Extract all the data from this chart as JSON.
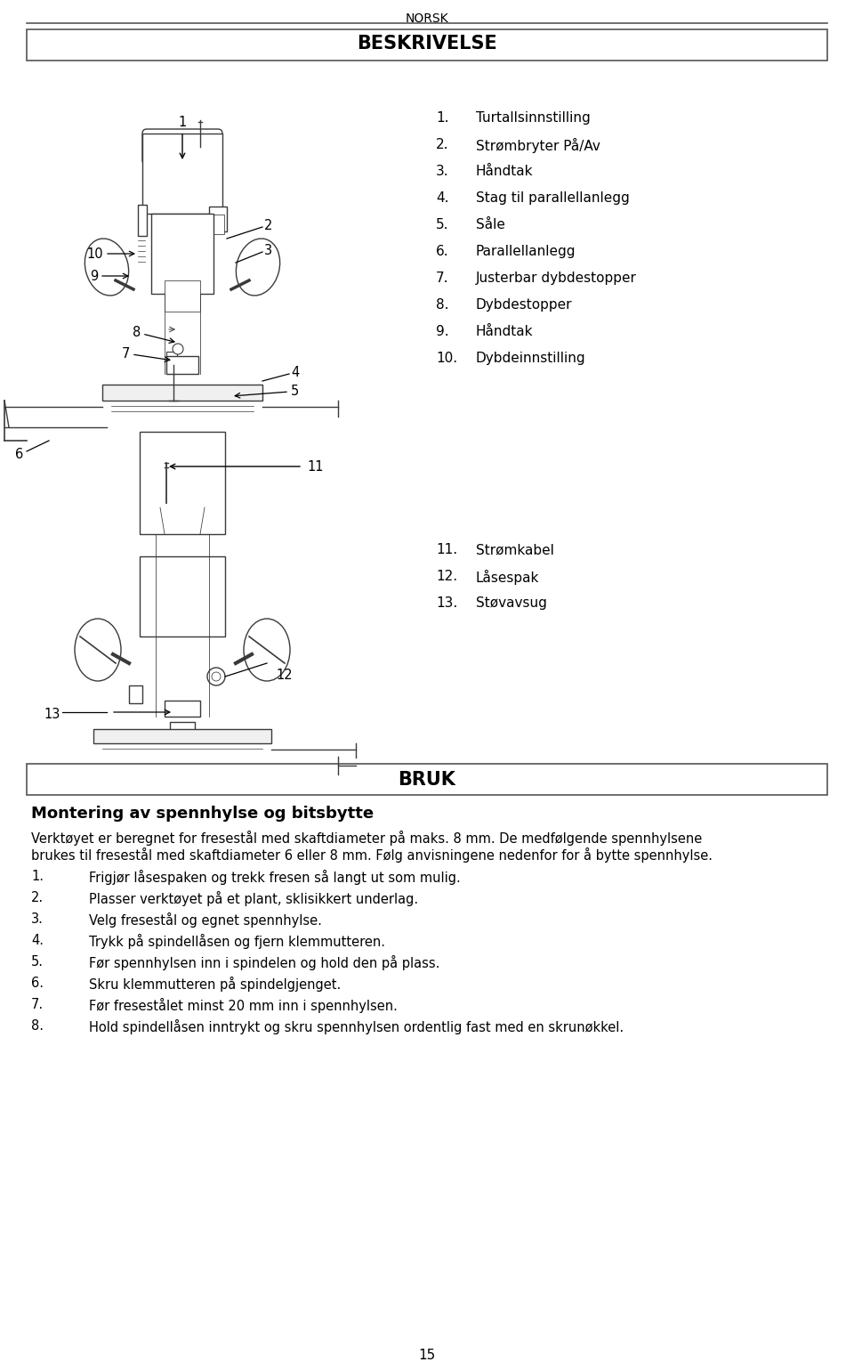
{
  "page_title": "NORSK",
  "section1_title": "BESKRIVELSE",
  "section2_title": "BRUK",
  "subsection_title": "Montering av spennhylse og bitsbytte",
  "intro_line1": "Verktøyet er beregnet for fresestål med skaftdiameter på maks. 8 mm. De medfølgende spennhylsene",
  "intro_line2": "brukes til fresestål med skaftdiameter 6 eller 8 mm. Følg anvisningene nedenfor for å bytte spennhylse.",
  "items_col1": [
    [
      "1.",
      "Turtallsinnstilling"
    ],
    [
      "2.",
      "Strømbryter På/Av"
    ],
    [
      "3.",
      "Håndtak"
    ],
    [
      "4.",
      "Stag til parallellanlegg"
    ],
    [
      "5.",
      "Såle"
    ],
    [
      "6.",
      "Parallellanlegg"
    ],
    [
      "7.",
      "Justerbar dybdestopper"
    ],
    [
      "8.",
      "Dybdestopper"
    ],
    [
      "9.",
      "Håndtak"
    ],
    [
      "10.",
      "Dybdeinnstilling"
    ]
  ],
  "items_col2": [
    [
      "11.",
      "Strømkabel"
    ],
    [
      "12.",
      "Låsespak"
    ],
    [
      "13.",
      "Støvavsug"
    ]
  ],
  "steps": [
    [
      "1.",
      "Frigjør låsespaken og trekk fresen så langt ut som mulig."
    ],
    [
      "2.",
      "Plasser verktøyet på et plant, sklisikkert underlag."
    ],
    [
      "3.",
      "Velg fresestål og egnet spennhylse."
    ],
    [
      "4.",
      "Trykk på spindellåsen og fjern klemmutteren."
    ],
    [
      "5.",
      "Før spennhylsen inn i spindelen og hold den på plass."
    ],
    [
      "6.",
      "Skru klemmutteren på spindelgjenget."
    ],
    [
      "7.",
      "Før fresestålet minst 20 mm inn i spennhylsen."
    ],
    [
      "8.",
      "Hold spindellåsen inntrykt og skru spennhylsen ordentlig fast med en skrunøkkel."
    ]
  ],
  "page_number": "15",
  "bg_color": "#ffffff",
  "text_color": "#000000",
  "line_color": "#3a3a3a",
  "gray_color": "#888888"
}
